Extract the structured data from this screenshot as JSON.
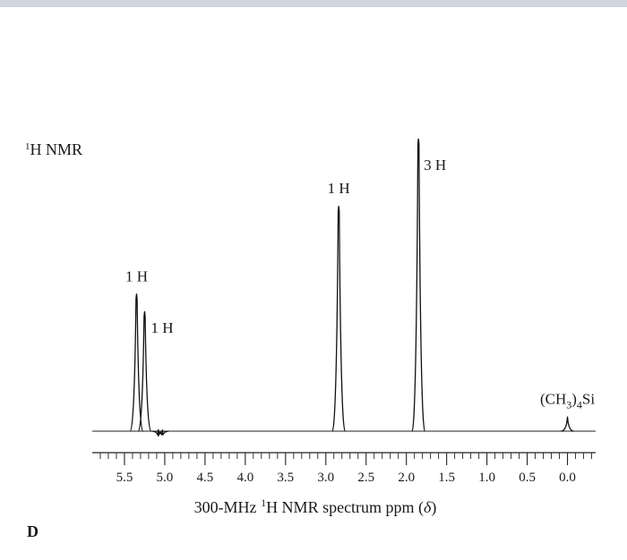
{
  "chart_data": {
    "type": "line",
    "title": "H NMR",
    "title_superscript": "1",
    "xlabel_prefix": "300-MHz ",
    "xlabel_superscript": "1",
    "xlabel_main": "H NMR spectrum ppm (",
    "xlabel_delta": "δ",
    "xlabel_suffix": ")",
    "panel_label": "D",
    "xlim": [
      5.9,
      -0.35
    ],
    "x_reversed": true,
    "ticks": [
      {
        "value": 5.5,
        "label": "5.5"
      },
      {
        "value": 5.0,
        "label": "5.0"
      },
      {
        "value": 4.5,
        "label": "4.5"
      },
      {
        "value": 4.0,
        "label": "4.0"
      },
      {
        "value": 3.5,
        "label": "3.5"
      },
      {
        "value": 3.0,
        "label": "3.0"
      },
      {
        "value": 2.5,
        "label": "2.5"
      },
      {
        "value": 2.0,
        "label": "2.0"
      },
      {
        "value": 1.5,
        "label": "1.5"
      },
      {
        "value": 1.0,
        "label": "1.0"
      },
      {
        "value": 0.5,
        "label": "0.5"
      },
      {
        "value": 0.0,
        "label": "0.0"
      }
    ],
    "peaks": [
      {
        "ppm": 5.35,
        "height": 0.47,
        "label": "1 H"
      },
      {
        "ppm": 5.25,
        "height": 0.41,
        "label": "1 H"
      },
      {
        "ppm": 2.84,
        "height": 0.77,
        "label": "1 H"
      },
      {
        "ppm": 1.85,
        "height": 1.0,
        "label": "3 H"
      },
      {
        "ppm": 0.0,
        "height": 0.05,
        "label": "(CH",
        "label_sub": "3",
        "label_tail": ")",
        "label_sub2": "4",
        "label_end": "Si"
      }
    ],
    "minor_peaks": [
      {
        "ppm": 5.08,
        "height": 0.006
      },
      {
        "ppm": 5.03,
        "height": 0.005
      }
    ]
  }
}
